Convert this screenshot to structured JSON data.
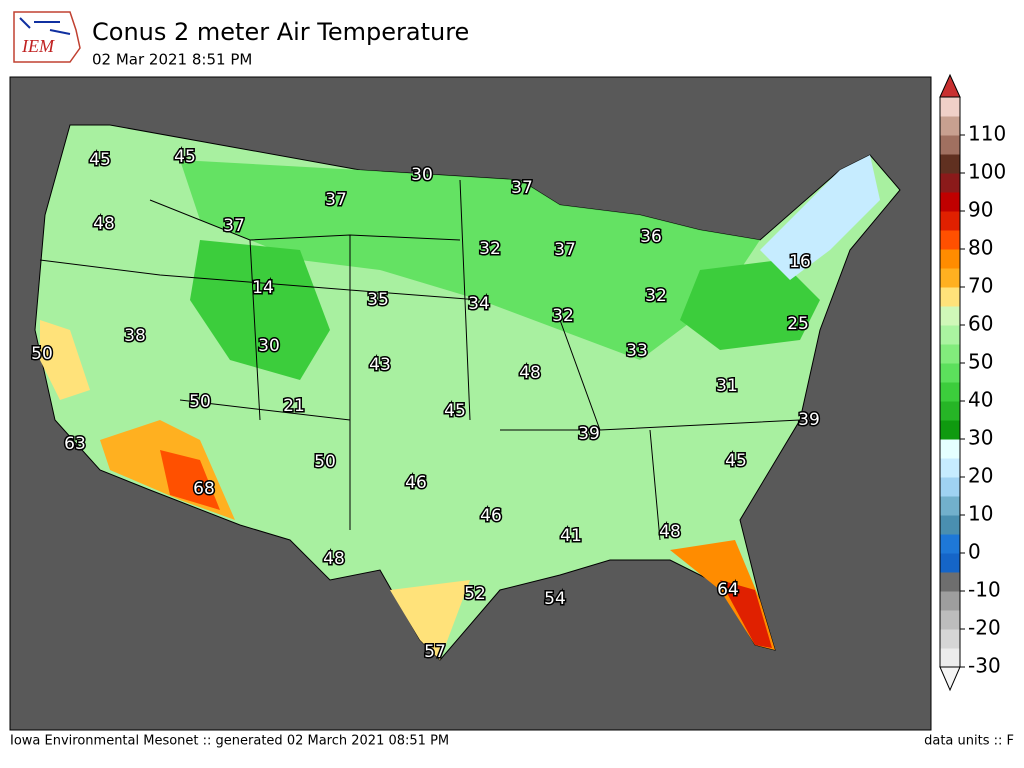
{
  "header": {
    "logo": "IEM",
    "title": "Conus 2 meter Air Temperature",
    "subtitle": "02 Mar 2021 8:51 PM"
  },
  "map": {
    "station_values": [
      45,
      45,
      30,
      37,
      37,
      48,
      37,
      36,
      32,
      37,
      16,
      14,
      35,
      34,
      32,
      32,
      25,
      38,
      50,
      30,
      33,
      43,
      48,
      31,
      50,
      21,
      45,
      39,
      39,
      63,
      45,
      50,
      46,
      68,
      46,
      48,
      41,
      48,
      52,
      54,
      64,
      57
    ]
  },
  "colorbar": {
    "range": [
      -30,
      120
    ],
    "ticks": [
      -30,
      -20,
      -10,
      0,
      10,
      20,
      30,
      40,
      50,
      60,
      70,
      80,
      90,
      100,
      110
    ],
    "colors": [
      "#ececec",
      "#d6d6d6",
      "#bdbdbd",
      "#9e9e9e",
      "#6e6e6e",
      "#1565c8",
      "#1e78d8",
      "#4a8fb0",
      "#72b0cc",
      "#9fd2f2",
      "#c6ecff",
      "#e4ffff",
      "#0f9a0f",
      "#26b526",
      "#3ccd3c",
      "#5ce05c",
      "#82ec7c",
      "#aaf4a0",
      "#d0f8b8",
      "#ffe27a",
      "#ffb020",
      "#ff8c00",
      "#ff5000",
      "#e02000",
      "#c00000",
      "#8b1a1a",
      "#603020",
      "#a07060",
      "#c8a090",
      "#f0d0c8"
    ]
  },
  "footer": {
    "left": "Iowa Environmental Mesonet :: generated 02 March 2021 08:51 PM",
    "right": "data units :: F"
  }
}
